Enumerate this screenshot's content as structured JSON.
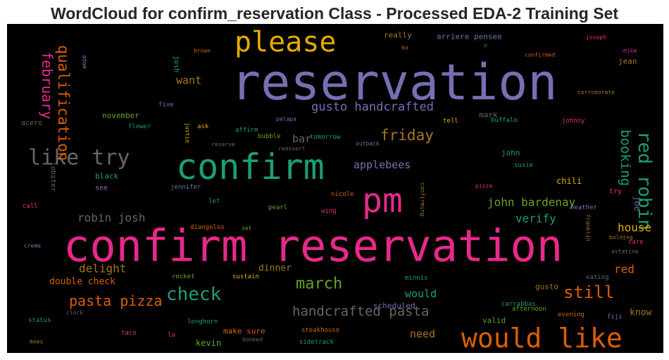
{
  "chart_data": {
    "type": "wordcloud",
    "title": "WordCloud for confirm_reservation Class - Processed EDA-2 Training Set",
    "background": "#000000",
    "colormap": "Dark2",
    "words": [
      {
        "text": "reservation",
        "color": "#7570b3"
      },
      {
        "text": "confirm reservation",
        "color": "#e7298a"
      },
      {
        "text": "confirm",
        "color": "#1b9e77"
      },
      {
        "text": "would like",
        "color": "#d95f02"
      },
      {
        "text": "pm",
        "color": "#e7298a"
      },
      {
        "text": "please",
        "color": "#e6ab02"
      },
      {
        "text": "like try",
        "color": "#666666"
      },
      {
        "text": "red robin",
        "color": "#1b9e77"
      },
      {
        "text": "check",
        "color": "#1b9e77"
      },
      {
        "text": "still",
        "color": "#d95f02"
      },
      {
        "text": "march",
        "color": "#66a61e"
      },
      {
        "text": "friday",
        "color": "#a6761d"
      },
      {
        "text": "qualification",
        "color": "#d95f02"
      },
      {
        "text": "february",
        "color": "#e7298a"
      },
      {
        "text": "pasta pizza",
        "color": "#d95f02"
      },
      {
        "text": "handcrafted pasta",
        "color": "#666666"
      },
      {
        "text": "gusto handcrafted",
        "color": "#7570b3"
      },
      {
        "text": "booking",
        "color": "#1b9e77"
      },
      {
        "text": "john bardenay",
        "color": "#66a61e"
      },
      {
        "text": "robin josh",
        "color": "#666666"
      },
      {
        "text": "delight",
        "color": "#a6761d"
      },
      {
        "text": "applebees",
        "color": "#7570b3"
      },
      {
        "text": "verify",
        "color": "#1b9e77"
      },
      {
        "text": "house",
        "color": "#e6ab02"
      },
      {
        "text": "red",
        "color": "#d95f02"
      },
      {
        "text": "want",
        "color": "#a6761d"
      },
      {
        "text": "need",
        "color": "#a6761d"
      },
      {
        "text": "would",
        "color": "#1b9e77"
      },
      {
        "text": "bar",
        "color": "#666666"
      },
      {
        "text": "dinner",
        "color": "#a6761d"
      },
      {
        "text": "double check",
        "color": "#d95f02"
      },
      {
        "text": "know",
        "color": "#a6761d"
      },
      {
        "text": "chili",
        "color": "#e6ab02"
      },
      {
        "text": "joe",
        "color": "#7570b3"
      },
      {
        "text": "kevin",
        "color": "#66a61e"
      },
      {
        "text": "make sure",
        "color": "#d95f02"
      },
      {
        "text": "really",
        "color": "#a6761d"
      },
      {
        "text": "arriere pensee",
        "color": "#7570b3"
      },
      {
        "text": "november",
        "color": "#66a61e"
      },
      {
        "text": "mark",
        "color": "#666666"
      },
      {
        "text": "john",
        "color": "#1b9e77"
      },
      {
        "text": "jean",
        "color": "#a6761d"
      },
      {
        "text": "gusto",
        "color": "#a6761d"
      },
      {
        "text": "scheduled",
        "color": "#7570b3"
      },
      {
        "text": "valid",
        "color": "#66a61e"
      },
      {
        "text": "black",
        "color": "#1b9e77"
      },
      {
        "text": "see",
        "color": "#7570b3"
      },
      {
        "text": "lobster",
        "color": "#666666"
      },
      {
        "text": "josh",
        "color": "#1b9e77"
      },
      {
        "text": "try",
        "color": "#e7298a"
      },
      {
        "text": "acero",
        "color": "#666666"
      },
      {
        "text": "five",
        "color": "#7570b3"
      },
      {
        "text": "flower",
        "color": "#1b9e77"
      },
      {
        "text": "justin",
        "color": "#e6ab02"
      },
      {
        "text": "ask",
        "color": "#e6ab02"
      },
      {
        "text": "affirm",
        "color": "#1b9e77"
      },
      {
        "text": "bubble",
        "color": "#66a61e"
      },
      {
        "text": "tomorrow",
        "color": "#1b9e77"
      },
      {
        "text": "tell",
        "color": "#e6ab02"
      },
      {
        "text": "buffalo",
        "color": "#1b9e77"
      },
      {
        "text": "johnny",
        "color": "#e7298a"
      },
      {
        "text": "palapa",
        "color": "#7570b3"
      },
      {
        "text": "reserve",
        "color": "#666666"
      },
      {
        "text": "reassert",
        "color": "#666666"
      },
      {
        "text": "outback",
        "color": "#7570b3"
      },
      {
        "text": "susie",
        "color": "#1b9e77"
      },
      {
        "text": "pizza",
        "color": "#e7298a"
      },
      {
        "text": "jennifer",
        "color": "#7570b3"
      },
      {
        "text": "let",
        "color": "#1b9e77"
      },
      {
        "text": "nicole",
        "color": "#d95f02"
      },
      {
        "text": "confirming",
        "color": "#a6761d"
      },
      {
        "text": "call",
        "color": "#e7298a"
      },
      {
        "text": "pearl",
        "color": "#66a61e"
      },
      {
        "text": "wing",
        "color": "#e7298a"
      },
      {
        "text": "heather",
        "color": "#7570b3"
      },
      {
        "text": "diangelos",
        "color": "#d95f02"
      },
      {
        "text": "set",
        "color": "#66a61e"
      },
      {
        "text": "franklin",
        "color": "#a6761d"
      },
      {
        "text": "care",
        "color": "#e7298a"
      },
      {
        "text": "bolding",
        "color": "#a6761d"
      },
      {
        "text": "creme",
        "color": "#7570b3"
      },
      {
        "text": "astatine",
        "color": "#666666"
      },
      {
        "text": "rocket",
        "color": "#66a61e"
      },
      {
        "text": "sustain",
        "color": "#e6ab02"
      },
      {
        "text": "minnis",
        "color": "#1b9e77"
      },
      {
        "text": "eating",
        "color": "#666666"
      },
      {
        "text": "carrabbas",
        "color": "#1b9e77"
      },
      {
        "text": "afternoon",
        "color": "#66a61e"
      },
      {
        "text": "evening",
        "color": "#d95f02"
      },
      {
        "text": "fiji",
        "color": "#7570b3"
      },
      {
        "text": "clock",
        "color": "#666666"
      },
      {
        "text": "status",
        "color": "#1b9e77"
      },
      {
        "text": "taco",
        "color": "#e7298a"
      },
      {
        "text": "la",
        "color": "#e7298a"
      },
      {
        "text": "longhorn",
        "color": "#1b9e77"
      },
      {
        "text": "steakhouse",
        "color": "#d95f02"
      },
      {
        "text": "moes",
        "color": "#a6761d"
      },
      {
        "text": "booked",
        "color": "#666666"
      },
      {
        "text": "sidetrack",
        "color": "#1b9e77"
      },
      {
        "text": "adam",
        "color": "#7570b3"
      },
      {
        "text": "brown",
        "color": "#d95f02"
      },
      {
        "text": "ho",
        "color": "#d95f02"
      },
      {
        "text": "u",
        "color": "#1b9e77"
      },
      {
        "text": "joseph",
        "color": "#e7298a"
      },
      {
        "text": "mike",
        "color": "#e7298a"
      },
      {
        "text": "confirmed",
        "color": "#d95f02"
      },
      {
        "text": "corroborate",
        "color": "#a6761d"
      }
    ]
  }
}
